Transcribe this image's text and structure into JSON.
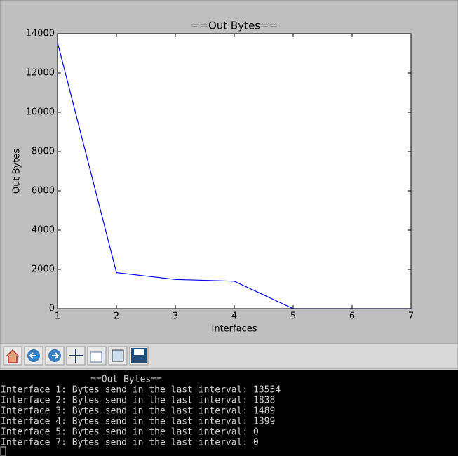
{
  "chart_data": {
    "type": "line",
    "title": "==Out Bytes==",
    "x_label": "Interfaces",
    "y_label": "Out Bytes",
    "x": [
      1,
      2,
      3,
      4,
      5,
      6,
      7
    ],
    "values": [
      13554,
      1838,
      1489,
      1399,
      0,
      0,
      0
    ],
    "color": "#0000ff",
    "xlim": [
      1,
      7
    ],
    "ylim": [
      0,
      14000
    ],
    "xticks": [
      1,
      2,
      3,
      4,
      5,
      6,
      7
    ],
    "yticks": [
      0,
      2000,
      4000,
      6000,
      8000,
      10000,
      12000,
      14000
    ]
  },
  "terminal": {
    "heading": "==Out Bytes==",
    "lines": [
      "Interface 1: Bytes send in the last interval: 13554",
      "Interface 2: Bytes send in the last interval: 1838",
      "Interface 3: Bytes send in the last interval: 1489",
      "Interface 4: Bytes send in the last interval: 1399",
      "Interface 5: Bytes send in the last interval: 0",
      "Interface 7: Bytes send in the last interval: 0"
    ]
  }
}
